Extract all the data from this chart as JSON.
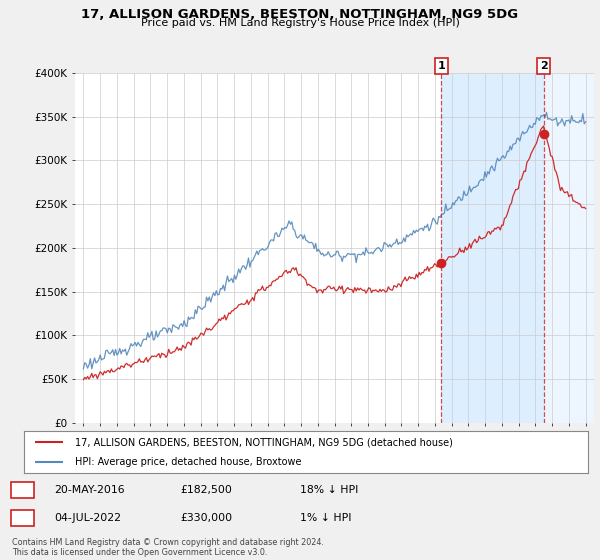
{
  "title": "17, ALLISON GARDENS, BEESTON, NOTTINGHAM, NG9 5DG",
  "subtitle": "Price paid vs. HM Land Registry's House Price Index (HPI)",
  "xlim": [
    1994.5,
    2025.5
  ],
  "ylim": [
    0,
    400000
  ],
  "yticks": [
    0,
    50000,
    100000,
    150000,
    200000,
    250000,
    300000,
    350000,
    400000
  ],
  "ytick_labels": [
    "£0",
    "£50K",
    "£100K",
    "£150K",
    "£200K",
    "£250K",
    "£300K",
    "£350K",
    "£400K"
  ],
  "xtick_years": [
    1995,
    1996,
    1997,
    1998,
    1999,
    2000,
    2001,
    2002,
    2003,
    2004,
    2005,
    2006,
    2007,
    2008,
    2009,
    2010,
    2011,
    2012,
    2013,
    2014,
    2015,
    2016,
    2017,
    2018,
    2019,
    2020,
    2021,
    2022,
    2023,
    2024,
    2025
  ],
  "hpi_color": "#5588bb",
  "price_color": "#cc2222",
  "marker_color": "#cc2222",
  "shade_color": "#ddeeff",
  "sale1_year": 2016.38,
  "sale1_price": 182500,
  "sale2_year": 2022.5,
  "sale2_price": 330000,
  "legend_line1": "17, ALLISON GARDENS, BEESTON, NOTTINGHAM, NG9 5DG (detached house)",
  "legend_line2": "HPI: Average price, detached house, Broxtowe",
  "footer": "Contains HM Land Registry data © Crown copyright and database right 2024.\nThis data is licensed under the Open Government Licence v3.0.",
  "bg_color": "#f0f0f0",
  "plot_bg": "#ffffff",
  "grid_color": "#cccccc"
}
